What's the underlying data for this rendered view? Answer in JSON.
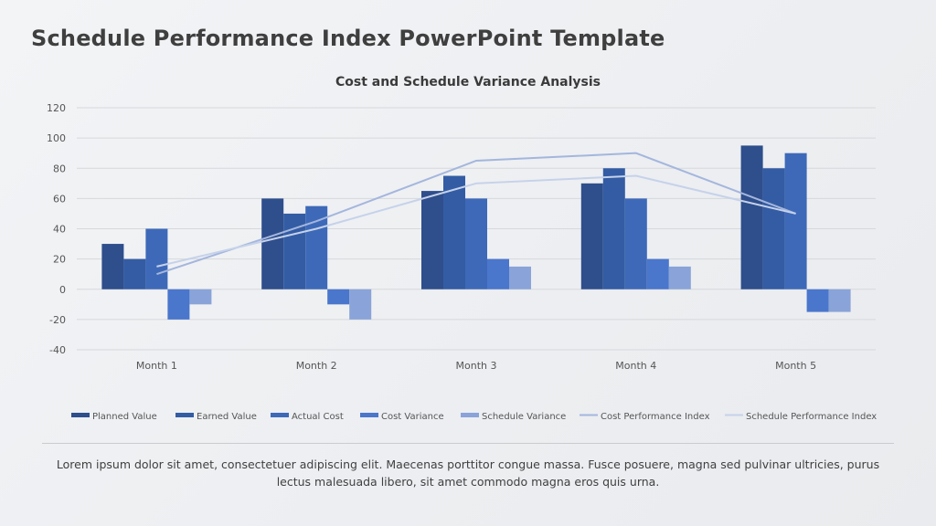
{
  "slide": {
    "title": "Schedule Performance Index PowerPoint Template",
    "caption": "Lorem ipsum dolor sit amet, consectetuer adipiscing elit.  Maecenas porttitor congue massa. Fusce posuere, magna sed pulvinar ultricies, purus lectus malesuada libero, sit amet commodo magna eros quis urna."
  },
  "chart_data": {
    "type": "bar",
    "title": "Cost and Schedule Variance Analysis",
    "xlabel": "",
    "ylabel": "",
    "ylim": [
      -40,
      120
    ],
    "yticks": [
      120,
      100,
      80,
      60,
      40,
      20,
      0,
      -20,
      -40
    ],
    "grid": true,
    "legend_position": "bottom",
    "categories": [
      "Month 1",
      "Month 2",
      "Month 3",
      "Month 4",
      "Month 5"
    ],
    "series": [
      {
        "name": "Planned Value",
        "type": "bar",
        "color": "#2e4e8c",
        "values": [
          30,
          60,
          65,
          70,
          95
        ]
      },
      {
        "name": "Earned Value",
        "type": "bar",
        "color": "#335ca4",
        "values": [
          20,
          50,
          75,
          80,
          80
        ]
      },
      {
        "name": "Actual Cost",
        "type": "bar",
        "color": "#3d69b8",
        "values": [
          40,
          55,
          60,
          60,
          90
        ]
      },
      {
        "name": "Cost Variance",
        "type": "bar",
        "color": "#4a76cc",
        "values": [
          -20,
          -10,
          20,
          20,
          -15
        ]
      },
      {
        "name": "Schedule Variance",
        "type": "bar",
        "color": "#8aa3d8",
        "values": [
          -10,
          -20,
          15,
          15,
          -15
        ]
      },
      {
        "name": "Cost Performance Index",
        "type": "line",
        "color": "#a4b6dd",
        "values": [
          10,
          45,
          85,
          90,
          50
        ]
      },
      {
        "name": "Schedule Performance Index",
        "type": "line",
        "color": "#c6d2ea",
        "values": [
          15,
          40,
          70,
          75,
          50
        ]
      }
    ]
  }
}
